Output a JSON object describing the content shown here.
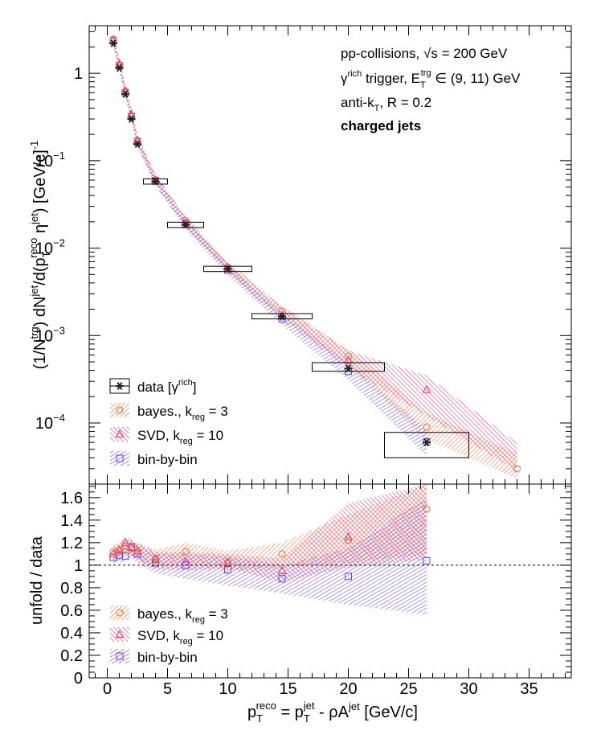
{
  "chart_data": [
    {
      "type": "scatter",
      "panel": "top",
      "y_scale": "log",
      "xlim": [
        -1.5,
        38.5
      ],
      "ylim": [
        2e-05,
        3.5
      ],
      "ylabel_parts": [
        "(1/N",
        "trg",
        ") dN",
        "jet",
        "/d(p",
        "T",
        "reco",
        " η",
        "jet",
        ") [GeV/c]",
        "-1"
      ],
      "y_ticks": [
        {
          "v": 1,
          "label": "1"
        },
        {
          "v": 0.1,
          "label": "10",
          "exp": "−1"
        },
        {
          "v": 0.01,
          "label": "10",
          "exp": "−2"
        },
        {
          "v": 0.001,
          "label": "10",
          "exp": "−3"
        },
        {
          "v": 0.0001,
          "label": "10",
          "exp": "−4"
        }
      ],
      "annotations": {
        "line1_a": "pp-collisions, ",
        "line1_b": "√s",
        "line1_c": " = 200 GeV",
        "line2_a": "γ",
        "line2_b": "rich",
        "line2_c": " trigger, E",
        "line2_d": "T",
        "line2_e": "trg",
        "line2_f": " ∈ (9, 11) GeV",
        "line3_a": "anti-k",
        "line3_b": "T",
        "line3_c": ", R = 0.2",
        "line4": "charged jets"
      },
      "legend": [
        {
          "key": "data",
          "label": "data [γ",
          "sup": "rich",
          "tail": "]"
        },
        {
          "key": "bayes",
          "label": "bayes., k",
          "sub": "reg",
          "tail": " = 3"
        },
        {
          "key": "svd",
          "label": "SVD, k",
          "sub": "reg",
          "tail": " = 10"
        },
        {
          "key": "bbb",
          "label": "bin-by-bin"
        }
      ],
      "series": [
        {
          "name": "data [γrich]",
          "key": "data",
          "points": [
            {
              "x": 0.5,
              "y": 2.2
            },
            {
              "x": 1.0,
              "y": 1.15
            },
            {
              "x": 1.5,
              "y": 0.58
            },
            {
              "x": 2.0,
              "y": 0.3
            },
            {
              "x": 2.5,
              "y": 0.155
            },
            {
              "x": 4.0,
              "y": 0.058,
              "xerr": 1.0,
              "box": [
                0.054,
                0.062
              ]
            },
            {
              "x": 6.5,
              "y": 0.0185,
              "xerr": 1.5,
              "box": [
                0.0172,
                0.0198
              ]
            },
            {
              "x": 10.0,
              "y": 0.0058,
              "xerr": 2.0,
              "box": [
                0.0054,
                0.0062
              ]
            },
            {
              "x": 14.5,
              "y": 0.00165,
              "xerr": 2.5,
              "box": [
                0.00155,
                0.00178
              ]
            },
            {
              "x": 20.0,
              "y": 0.00042,
              "xerr": 3.0,
              "box": [
                0.00039,
                0.00049
              ]
            },
            {
              "x": 26.5,
              "y": 6e-05,
              "xerr": 3.5,
              "box": [
                4e-05,
                7.8e-05
              ]
            }
          ]
        },
        {
          "name": "bayes., kreg = 3",
          "key": "bayes",
          "points": [
            {
              "x": 0.5,
              "y": 2.45
            },
            {
              "x": 1.0,
              "y": 1.25
            },
            {
              "x": 1.5,
              "y": 0.62
            },
            {
              "x": 2.0,
              "y": 0.33
            },
            {
              "x": 2.5,
              "y": 0.17
            },
            {
              "x": 4.0,
              "y": 0.06
            },
            {
              "x": 6.5,
              "y": 0.0205
            },
            {
              "x": 10.0,
              "y": 0.006
            },
            {
              "x": 14.5,
              "y": 0.0019
            },
            {
              "x": 20.0,
              "y": 0.00058
            },
            {
              "x": 26.5,
              "y": 9e-05
            },
            {
              "x": 34.0,
              "y": 3e-05
            }
          ]
        },
        {
          "name": "SVD, kreg = 10",
          "key": "svd",
          "points": [
            {
              "x": 0.5,
              "y": 2.4
            },
            {
              "x": 1.0,
              "y": 1.28
            },
            {
              "x": 1.5,
              "y": 0.63
            },
            {
              "x": 2.0,
              "y": 0.34
            },
            {
              "x": 2.5,
              "y": 0.17
            },
            {
              "x": 4.0,
              "y": 0.06
            },
            {
              "x": 6.5,
              "y": 0.0195
            },
            {
              "x": 10.0,
              "y": 0.006
            },
            {
              "x": 14.5,
              "y": 0.0017
            },
            {
              "x": 20.0,
              "y": 0.00052
            },
            {
              "x": 26.5,
              "y": 0.00024
            }
          ]
        },
        {
          "name": "bin-by-bin",
          "key": "bbb",
          "points": [
            {
              "x": 0.5,
              "y": 2.35
            },
            {
              "x": 1.0,
              "y": 1.22
            },
            {
              "x": 1.5,
              "y": 0.6
            },
            {
              "x": 2.0,
              "y": 0.32
            },
            {
              "x": 2.5,
              "y": 0.165
            },
            {
              "x": 4.0,
              "y": 0.059
            },
            {
              "x": 6.5,
              "y": 0.019
            },
            {
              "x": 10.0,
              "y": 0.0056
            },
            {
              "x": 14.5,
              "y": 0.00155
            },
            {
              "x": 20.0,
              "y": 0.00039
            },
            {
              "x": 26.5,
              "y": 6.1e-05
            }
          ]
        }
      ],
      "bands": [
        {
          "key": "bayes",
          "x": [
            0.5,
            1.0,
            1.5,
            2.0,
            2.5,
            4.0,
            6.5,
            10.0,
            14.5,
            20.0,
            26.5,
            34.0
          ],
          "lo": [
            2.1,
            1.1,
            0.55,
            0.29,
            0.15,
            0.053,
            0.018,
            0.0053,
            0.0016,
            0.00045,
            6.5e-05,
            2.3e-05
          ],
          "hi": [
            2.8,
            1.45,
            0.72,
            0.38,
            0.195,
            0.068,
            0.023,
            0.0068,
            0.0022,
            0.0007,
            0.00013,
            4.5e-05
          ]
        },
        {
          "key": "svd",
          "x": [
            0.5,
            1.0,
            1.5,
            2.0,
            2.5,
            4.0,
            6.5,
            10.0,
            14.5,
            20.0,
            26.5,
            34.0
          ],
          "lo": [
            2.05,
            1.1,
            0.55,
            0.29,
            0.15,
            0.052,
            0.017,
            0.0052,
            0.0015,
            0.00042,
            0.00012,
            2.8e-05
          ],
          "hi": [
            2.8,
            1.5,
            0.74,
            0.4,
            0.2,
            0.07,
            0.023,
            0.007,
            0.0021,
            0.00068,
            0.00035,
            6e-05
          ]
        },
        {
          "key": "bbb",
          "x": [
            0.5,
            1.0,
            1.5,
            2.0,
            2.5,
            4.0,
            6.5,
            10.0,
            14.5,
            20.0,
            26.5
          ],
          "lo": [
            2.05,
            1.07,
            0.53,
            0.28,
            0.145,
            0.052,
            0.0165,
            0.0049,
            0.00133,
            0.00031,
            4.2e-05
          ],
          "hi": [
            2.7,
            1.4,
            0.69,
            0.37,
            0.19,
            0.067,
            0.022,
            0.0065,
            0.0018,
            0.00049,
            8.5e-05
          ]
        }
      ]
    },
    {
      "type": "scatter",
      "panel": "bottom",
      "xlim": [
        -1.5,
        38.5
      ],
      "ylim": [
        0,
        1.72
      ],
      "x_ticks": [
        0,
        5,
        10,
        15,
        20,
        25,
        30,
        35
      ],
      "y_ticks": [
        0,
        0.2,
        0.4,
        0.6,
        0.8,
        1,
        1.2,
        1.4,
        1.6
      ],
      "y_tick_labels": [
        "0",
        "0.2",
        "0.4",
        "0.6",
        "0.8",
        "1",
        "1.2",
        "1.4",
        "1.6"
      ],
      "ylabel": "unfold / data",
      "xlabel_parts": [
        "p",
        "T",
        "reco",
        " = p",
        "T",
        "jet",
        " - ρA",
        "jet",
        " [GeV/c]"
      ],
      "reference_line": 1,
      "legend": [
        {
          "key": "bayes",
          "label": "bayes., k",
          "sub": "reg",
          "tail": " = 3"
        },
        {
          "key": "svd",
          "label": "SVD, k",
          "sub": "reg",
          "tail": " = 10"
        },
        {
          "key": "bbb",
          "label": "bin-by-bin"
        }
      ],
      "series": [
        {
          "name": "bayes., kreg = 3",
          "key": "bayes",
          "points": [
            {
              "x": 0.5,
              "y": 1.12
            },
            {
              "x": 1.0,
              "y": 1.14
            },
            {
              "x": 1.5,
              "y": 1.17
            },
            {
              "x": 2.0,
              "y": 1.15
            },
            {
              "x": 2.5,
              "y": 1.12
            },
            {
              "x": 4.0,
              "y": 1.06
            },
            {
              "x": 6.5,
              "y": 1.12
            },
            {
              "x": 10.0,
              "y": 1.03
            },
            {
              "x": 14.5,
              "y": 1.1
            },
            {
              "x": 20.0,
              "y": 1.22
            },
            {
              "x": 26.5,
              "y": 1.5
            }
          ]
        },
        {
          "name": "SVD, kreg = 10",
          "key": "svd",
          "points": [
            {
              "x": 0.5,
              "y": 1.1
            },
            {
              "x": 1.0,
              "y": 1.13
            },
            {
              "x": 1.5,
              "y": 1.2
            },
            {
              "x": 2.0,
              "y": 1.16
            },
            {
              "x": 2.5,
              "y": 1.13
            },
            {
              "x": 4.0,
              "y": 1.05
            },
            {
              "x": 6.5,
              "y": 1.03
            },
            {
              "x": 10.0,
              "y": 1.02
            },
            {
              "x": 14.5,
              "y": 0.95
            },
            {
              "x": 20.0,
              "y": 1.25
            }
          ]
        },
        {
          "name": "bin-by-bin",
          "key": "bbb",
          "points": [
            {
              "x": 0.5,
              "y": 1.07
            },
            {
              "x": 1.0,
              "y": 1.09
            },
            {
              "x": 1.5,
              "y": 1.08
            },
            {
              "x": 2.0,
              "y": 1.16
            },
            {
              "x": 2.5,
              "y": 1.1
            },
            {
              "x": 4.0,
              "y": 1.02
            },
            {
              "x": 6.5,
              "y": 1.0
            },
            {
              "x": 10.0,
              "y": 0.96
            },
            {
              "x": 14.5,
              "y": 0.88
            },
            {
              "x": 20.0,
              "y": 0.9
            },
            {
              "x": 26.5,
              "y": 1.04
            }
          ]
        }
      ],
      "bands": [
        {
          "key": "bbb",
          "x": [
            0.5,
            1.0,
            1.5,
            2.0,
            2.5,
            4.0,
            6.5,
            10.0,
            14.5,
            20.0,
            26.5
          ],
          "lo": [
            1.0,
            1.03,
            1.02,
            1.06,
            1.02,
            0.93,
            0.88,
            0.82,
            0.75,
            0.65,
            0.56
          ],
          "hi": [
            1.14,
            1.15,
            1.14,
            1.22,
            1.18,
            1.1,
            1.1,
            1.08,
            1.0,
            1.15,
            1.6
          ]
        },
        {
          "key": "bayes",
          "x": [
            0.5,
            1.0,
            1.5,
            2.0,
            2.5,
            4.0,
            6.5,
            10.0,
            14.5,
            20.0,
            26.5
          ],
          "lo": [
            1.06,
            1.08,
            1.1,
            1.08,
            1.05,
            0.98,
            1.02,
            0.95,
            0.98,
            1.02,
            1.1
          ],
          "hi": [
            1.18,
            1.2,
            1.24,
            1.22,
            1.2,
            1.14,
            1.2,
            1.13,
            1.2,
            1.45,
            1.72
          ]
        },
        {
          "key": "svd",
          "x": [
            0.5,
            1.0,
            1.5,
            2.0,
            2.5,
            4.0,
            6.5,
            10.0,
            14.5,
            20.0,
            26.5
          ],
          "lo": [
            1.04,
            1.06,
            1.12,
            1.09,
            1.05,
            0.97,
            0.95,
            0.97,
            0.85,
            0.98,
            1.05
          ],
          "hi": [
            1.16,
            1.2,
            1.26,
            1.23,
            1.2,
            1.12,
            1.12,
            1.1,
            1.06,
            1.55,
            1.72
          ]
        }
      ]
    }
  ],
  "colors": {
    "data": "#222222",
    "bayes": "#ef6a2e",
    "svd": "#e0306a",
    "bbb": "#6a3fe8",
    "axis": "#000000"
  }
}
